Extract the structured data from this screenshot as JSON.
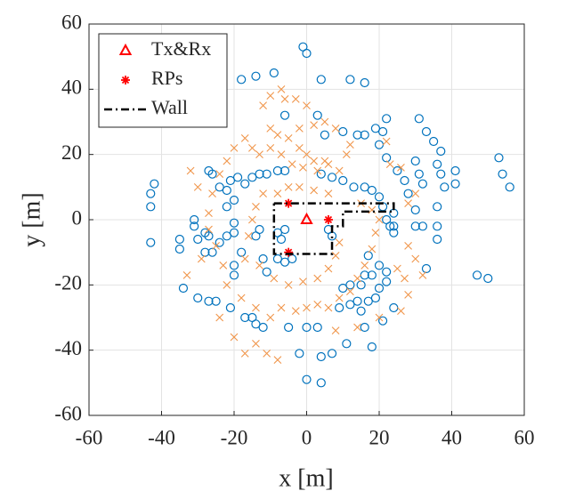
{
  "chart_data": {
    "type": "scatter",
    "xlabel": "x [m]",
    "ylabel": "y [m]",
    "xlim": [
      -60,
      60
    ],
    "xticks": [
      -60,
      -40,
      -20,
      0,
      20,
      40,
      60
    ],
    "ylim": [
      -60,
      60
    ],
    "yticks": [
      -60,
      -40,
      -20,
      0,
      20,
      40,
      60
    ],
    "grid": true,
    "legend": "upper left",
    "series": [
      {
        "color": "#0072bd",
        "marker": "circle",
        "x": [
          -1,
          0,
          -18,
          -14,
          -9,
          4,
          12,
          16,
          -6,
          -42,
          -43,
          -43,
          -43,
          -35,
          -35,
          -34,
          -30,
          -27,
          -25,
          -21,
          -17,
          -14,
          -15,
          -12,
          -5,
          0,
          3,
          -2,
          0,
          4,
          4,
          7,
          11,
          16,
          18,
          21,
          24,
          33,
          47,
          50,
          53,
          54,
          56,
          41,
          41,
          38,
          37,
          36,
          31,
          33,
          35,
          37,
          30,
          31,
          32,
          36,
          36,
          36,
          32,
          30,
          30,
          24,
          24,
          24,
          28,
          27,
          25,
          22,
          20,
          21,
          22,
          19,
          16,
          14,
          10,
          5,
          3,
          -6,
          -8,
          -7,
          -8,
          -6,
          -4,
          -14,
          -13,
          -12,
          -11,
          -22,
          -20,
          -20,
          -18,
          -20,
          -20,
          -24,
          -26,
          -28,
          -30,
          -27,
          -31,
          -31,
          -28,
          -26,
          -27,
          -24,
          -22,
          -22,
          -20,
          -21,
          -19,
          -17,
          -15,
          -13,
          -11,
          -8,
          -6,
          4,
          7,
          10,
          13,
          16,
          18,
          20,
          21,
          22,
          23,
          6,
          7,
          17,
          20,
          22,
          18,
          16,
          15,
          12,
          10,
          20,
          22,
          17,
          14,
          12,
          9,
          15,
          19
        ],
        "values": [
          53,
          51,
          43,
          44,
          45,
          43,
          43,
          42,
          32,
          11,
          8,
          4,
          -7,
          -6,
          -9,
          -21,
          -24,
          -25,
          -25,
          -27,
          -30,
          -32,
          -30,
          -33,
          -33,
          -33,
          -33,
          -41,
          -49,
          -50,
          -42,
          -41,
          -38,
          -33,
          -39,
          -31,
          -27,
          -15,
          -17,
          -18,
          19,
          14,
          10,
          15,
          11,
          10,
          14,
          17,
          31,
          27,
          24,
          21,
          18,
          14,
          11,
          -2,
          -6,
          4,
          -2,
          -2,
          3,
          -4,
          -2,
          2,
          8,
          12,
          15,
          19,
          23,
          27,
          31,
          28,
          26,
          26,
          27,
          26,
          32,
          -3,
          -4,
          -6,
          -12,
          -13,
          -12,
          -5,
          -3,
          -12,
          -16,
          -5,
          -4,
          -1,
          -10,
          -14,
          -17,
          -7,
          -10,
          -10,
          -6,
          -5,
          -2,
          0,
          -4,
          14,
          15,
          10,
          9,
          4,
          6,
          12,
          13,
          11,
          13,
          14,
          14,
          15,
          15,
          14,
          13,
          12,
          10,
          10,
          9,
          7,
          4,
          0,
          -2,
          -3,
          -5,
          -11,
          -14,
          -16,
          -17,
          -17,
          -20,
          -20,
          -21,
          -21,
          -19,
          -25,
          -25,
          -26,
          -27,
          -28,
          -24
        ]
      },
      {
        "color": "#f0954a",
        "marker": "cross",
        "x": [
          -10,
          -6,
          -3,
          0,
          -7,
          -12,
          -10,
          -8,
          -5,
          -2,
          0,
          2,
          5,
          -15,
          -13,
          -10,
          -7,
          -4,
          -1,
          3,
          6,
          9,
          11,
          12,
          8,
          5,
          2,
          -2,
          -17,
          -20,
          -22,
          -24,
          -26,
          -27,
          -27,
          -25,
          -23,
          -22,
          -18,
          -14,
          -10,
          -7,
          -3,
          0,
          3,
          6,
          9,
          12,
          14,
          16,
          18,
          19,
          20,
          18,
          15,
          25,
          27,
          28,
          26,
          20,
          14,
          8,
          -16,
          -15,
          -14,
          -12,
          -8,
          -5,
          -2,
          2,
          6,
          -17,
          -13,
          -9,
          -5,
          -1,
          3,
          6,
          8,
          9,
          -30,
          -29,
          -24,
          -20,
          -14,
          -11,
          -8,
          -17,
          23,
          26,
          22,
          28,
          30,
          32,
          28,
          30,
          -33,
          -32
        ],
        "values": [
          38,
          37,
          37,
          35,
          40,
          35,
          28,
          26,
          25,
          22,
          20,
          18,
          18,
          22,
          20,
          22,
          20,
          17,
          16,
          15,
          17,
          15,
          20,
          23,
          28,
          30,
          29,
          28,
          25,
          22,
          18,
          14,
          8,
          2,
          -3,
          -8,
          -14,
          -20,
          -24,
          -27,
          -30,
          -27,
          -28,
          -27,
          -26,
          -27,
          -24,
          -22,
          -18,
          -14,
          -9,
          -4,
          0,
          3,
          5,
          -15,
          -18,
          -23,
          -28,
          -30,
          -33,
          -34,
          -5,
          0,
          4,
          8,
          8,
          10,
          10,
          9,
          8,
          -12,
          -14,
          -18,
          -20,
          -19,
          -18,
          -15,
          -11,
          -7,
          10,
          -12,
          -30,
          -36,
          -38,
          -41,
          -43,
          -41,
          17,
          16,
          24,
          -8,
          -12,
          -17,
          5,
          8,
          -17,
          15
        ]
      },
      {
        "name": "Tx&Rx",
        "color": "#ff0000",
        "marker": "triangle",
        "x": [
          0
        ],
        "values": [
          0
        ]
      },
      {
        "name": "RPs",
        "color": "#ff0000",
        "marker": "asterisk",
        "x": [
          -5,
          6,
          -5
        ],
        "values": [
          5,
          0,
          -10
        ]
      },
      {
        "name": "Wall",
        "color": "#000000",
        "marker": "dashdot",
        "x": [
          -9,
          24,
          24,
          10,
          10,
          7,
          7,
          -9,
          -9
        ],
        "values": [
          5,
          5,
          2.5,
          2.5,
          -2,
          -2,
          -10.5,
          -10.5,
          5
        ]
      }
    ]
  }
}
